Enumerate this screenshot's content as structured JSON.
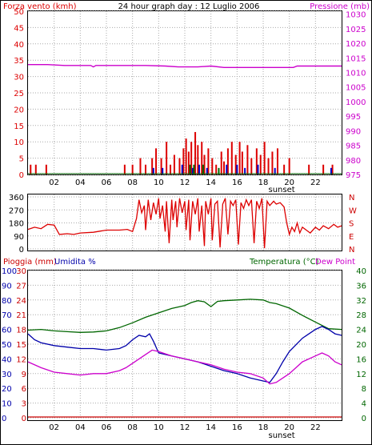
{
  "header": {
    "wind_label": "Forza vento (kmh)",
    "title": "24 hour graph day : 12 Luglio 2006",
    "pressure_label": "Pressione (mb)",
    "rain_label": "Pioggia (mm)",
    "humidity_label": "Umidita %",
    "temp_label": "Temperatura (°C)",
    "dew_label": "Dew Point"
  },
  "colors": {
    "wind": "#dd0000",
    "pressure": "#cc00cc",
    "gust_dir": "#0000cc",
    "temperature": "#006600",
    "humidity": "#0000aa",
    "dew": "#cc00cc",
    "grid": "#aaaaaa",
    "rain": "#cc0000"
  },
  "chart_data": [
    {
      "id": "wind",
      "type": "bar",
      "title": "24 hour graph day : 12 Luglio 2006",
      "x_ticks": [
        "02",
        "04",
        "06",
        "08",
        "10",
        "12",
        "14",
        "16",
        "18",
        "20",
        "22"
      ],
      "sunset_label": "sunset",
      "sunset_hour": 19.5,
      "left_axis": {
        "label": "Forza vento (kmh)",
        "ticks": [
          "0",
          "5",
          "10",
          "15",
          "20",
          "25",
          "30",
          "35",
          "40",
          "45",
          "50"
        ],
        "ylim": [
          0,
          50
        ]
      },
      "right_axis": {
        "label": "Pressione (mb)",
        "ticks": [
          "975",
          "980",
          "985",
          "990",
          "995",
          "1000",
          "1005",
          "1010",
          "1015",
          "1020",
          "1025",
          "1030"
        ],
        "ylim": [
          975,
          1031
        ]
      },
      "pressure_series": [
        [
          0,
          1012.7
        ],
        [
          1.5,
          1012.7
        ],
        [
          2.8,
          1012.4
        ],
        [
          4.8,
          1012.4
        ],
        [
          5.0,
          1011.9
        ],
        [
          5.2,
          1012.4
        ],
        [
          9.0,
          1012.4
        ],
        [
          10.5,
          1012.2
        ],
        [
          11.5,
          1011.9
        ],
        [
          13.0,
          1011.9
        ],
        [
          14.0,
          1012.2
        ],
        [
          15.0,
          1011.7
        ],
        [
          20.3,
          1011.7
        ],
        [
          20.6,
          1012.2
        ],
        [
          24,
          1012.2
        ]
      ],
      "wind_bars": [
        [
          0.2,
          3
        ],
        [
          0.6,
          3
        ],
        [
          1.4,
          3
        ],
        [
          7.4,
          3
        ],
        [
          8.0,
          3
        ],
        [
          8.6,
          5
        ],
        [
          9.0,
          3
        ],
        [
          9.5,
          5
        ],
        [
          9.8,
          8
        ],
        [
          10.2,
          5
        ],
        [
          10.6,
          10
        ],
        [
          10.9,
          3
        ],
        [
          11.2,
          6
        ],
        [
          11.6,
          5
        ],
        [
          11.9,
          8
        ],
        [
          12.1,
          11
        ],
        [
          12.3,
          7
        ],
        [
          12.5,
          10
        ],
        [
          12.8,
          13
        ],
        [
          13.0,
          9
        ],
        [
          13.3,
          10
        ],
        [
          13.5,
          6
        ],
        [
          13.8,
          8
        ],
        [
          14.1,
          5
        ],
        [
          14.4,
          3
        ],
        [
          14.8,
          7
        ],
        [
          15.0,
          4
        ],
        [
          15.3,
          8
        ],
        [
          15.6,
          10
        ],
        [
          15.9,
          6
        ],
        [
          16.2,
          10
        ],
        [
          16.4,
          7
        ],
        [
          16.8,
          9
        ],
        [
          17.1,
          5
        ],
        [
          17.5,
          8
        ],
        [
          17.8,
          6
        ],
        [
          18.1,
          10
        ],
        [
          18.4,
          5
        ],
        [
          18.7,
          7
        ],
        [
          19.1,
          8
        ],
        [
          19.6,
          3
        ],
        [
          20.0,
          5
        ],
        [
          21.5,
          3
        ],
        [
          22.6,
          3
        ],
        [
          23.3,
          3
        ]
      ],
      "gust_bars": [
        [
          9.6,
          2
        ],
        [
          10.3,
          2
        ],
        [
          11.8,
          3
        ],
        [
          12.6,
          2
        ],
        [
          13.1,
          3
        ],
        [
          13.7,
          2
        ],
        [
          15.2,
          3
        ],
        [
          16.0,
          3
        ],
        [
          16.6,
          2
        ],
        [
          17.6,
          3
        ],
        [
          18.9,
          2
        ],
        [
          23.2,
          2
        ]
      ],
      "calm_bars": [
        [
          12.4,
          3
        ],
        [
          12.7,
          3
        ],
        [
          13.4,
          3
        ],
        [
          14.6,
          2
        ]
      ]
    },
    {
      "id": "direction",
      "type": "line",
      "y_ticks": [
        "0",
        "90",
        "180",
        "270",
        "360"
      ],
      "ylim": [
        0,
        360
      ],
      "compass": [
        "N",
        "W",
        "S",
        "E",
        "N"
      ],
      "series": [
        [
          0,
          135
        ],
        [
          0.5,
          150
        ],
        [
          1,
          140
        ],
        [
          1.5,
          170
        ],
        [
          2,
          165
        ],
        [
          2.4,
          100
        ],
        [
          3,
          105
        ],
        [
          3.5,
          100
        ],
        [
          4,
          110
        ],
        [
          5,
          115
        ],
        [
          6,
          130
        ],
        [
          7,
          130
        ],
        [
          7.6,
          135
        ],
        [
          8.0,
          120
        ],
        [
          8.3,
          210
        ],
        [
          8.5,
          340
        ],
        [
          8.7,
          250
        ],
        [
          8.9,
          300
        ],
        [
          9.0,
          130
        ],
        [
          9.2,
          340
        ],
        [
          9.4,
          200
        ],
        [
          9.6,
          320
        ],
        [
          9.8,
          240
        ],
        [
          10.0,
          350
        ],
        [
          10.1,
          210
        ],
        [
          10.3,
          300
        ],
        [
          10.5,
          120
        ],
        [
          10.6,
          330
        ],
        [
          10.8,
          40
        ],
        [
          11.0,
          340
        ],
        [
          11.1,
          200
        ],
        [
          11.3,
          330
        ],
        [
          11.4,
          150
        ],
        [
          11.6,
          350
        ],
        [
          11.8,
          250
        ],
        [
          12.0,
          330
        ],
        [
          12.1,
          130
        ],
        [
          12.3,
          340
        ],
        [
          12.4,
          60
        ],
        [
          12.6,
          330
        ],
        [
          12.8,
          240
        ],
        [
          13.0,
          350
        ],
        [
          13.1,
          120
        ],
        [
          13.3,
          300
        ],
        [
          13.5,
          20
        ],
        [
          13.6,
          330
        ],
        [
          13.8,
          240
        ],
        [
          14.0,
          350
        ],
        [
          14.1,
          60
        ],
        [
          14.3,
          310
        ],
        [
          14.5,
          330
        ],
        [
          14.7,
          10
        ],
        [
          14.9,
          310
        ],
        [
          15.1,
          350
        ],
        [
          15.3,
          100
        ],
        [
          15.5,
          330
        ],
        [
          15.7,
          300
        ],
        [
          15.9,
          340
        ],
        [
          16.1,
          30
        ],
        [
          16.3,
          320
        ],
        [
          16.5,
          280
        ],
        [
          16.7,
          340
        ],
        [
          16.9,
          300
        ],
        [
          17.1,
          340
        ],
        [
          17.3,
          40
        ],
        [
          17.5,
          330
        ],
        [
          17.7,
          280
        ],
        [
          17.9,
          350
        ],
        [
          18.1,
          5
        ],
        [
          18.3,
          330
        ],
        [
          18.5,
          300
        ],
        [
          18.8,
          330
        ],
        [
          19.0,
          310
        ],
        [
          19.3,
          320
        ],
        [
          19.6,
          290
        ],
        [
          19.8,
          180
        ],
        [
          20.0,
          100
        ],
        [
          20.2,
          150
        ],
        [
          20.4,
          120
        ],
        [
          20.6,
          180
        ],
        [
          20.8,
          110
        ],
        [
          21.0,
          150
        ],
        [
          21.3,
          130
        ],
        [
          21.6,
          110
        ],
        [
          22.0,
          150
        ],
        [
          22.3,
          130
        ],
        [
          22.6,
          160
        ],
        [
          23.0,
          140
        ],
        [
          23.4,
          170
        ],
        [
          23.7,
          150
        ],
        [
          24,
          160
        ]
      ]
    },
    {
      "id": "temperature",
      "type": "line",
      "left_rain_ticks": [
        "0",
        "3",
        "6",
        "9",
        "12",
        "15",
        "18",
        "21",
        "24",
        "27",
        "30"
      ],
      "left_hum_ticks": [
        "0",
        "10",
        "20",
        "30",
        "40",
        "50",
        "60",
        "70",
        "80",
        "90",
        "100"
      ],
      "right_ticks": [
        "0",
        "4",
        "8",
        "12",
        "16",
        "20",
        "24",
        "28",
        "32",
        "36",
        "40"
      ],
      "rain_ylim": [
        0,
        30
      ],
      "humidity_ylim": [
        0,
        100
      ],
      "temp_ylim": [
        0,
        40
      ],
      "x_ticks": [
        "02",
        "04",
        "06",
        "08",
        "10",
        "12",
        "14",
        "16",
        "18",
        "20",
        "22"
      ],
      "sunset_label": "sunset",
      "temperature": [
        [
          0,
          23.8
        ],
        [
          1,
          24
        ],
        [
          2,
          23.6
        ],
        [
          3,
          23.4
        ],
        [
          4,
          23.2
        ],
        [
          5,
          23.3
        ],
        [
          6,
          23.6
        ],
        [
          7,
          24.5
        ],
        [
          8,
          25.8
        ],
        [
          9,
          27.3
        ],
        [
          10,
          28.5
        ],
        [
          11,
          29.7
        ],
        [
          12,
          30.5
        ],
        [
          12.5,
          31.3
        ],
        [
          13,
          31.8
        ],
        [
          13.5,
          31.5
        ],
        [
          14,
          30.2
        ],
        [
          14.5,
          31.6
        ],
        [
          15,
          31.8
        ],
        [
          16,
          32
        ],
        [
          17,
          32.2
        ],
        [
          18,
          32
        ],
        [
          18.5,
          31.3
        ],
        [
          19,
          31
        ],
        [
          20,
          29.8
        ],
        [
          21,
          27.8
        ],
        [
          22,
          26
        ],
        [
          23,
          24.2
        ],
        [
          24,
          24
        ]
      ],
      "humidity": [
        [
          0,
          57
        ],
        [
          0.5,
          53
        ],
        [
          1,
          51
        ],
        [
          2,
          49
        ],
        [
          3,
          48
        ],
        [
          4,
          47
        ],
        [
          5,
          47
        ],
        [
          6,
          46
        ],
        [
          7,
          47
        ],
        [
          7.5,
          49
        ],
        [
          8,
          53
        ],
        [
          8.5,
          56
        ],
        [
          9,
          55
        ],
        [
          9.3,
          57
        ],
        [
          9.6,
          52
        ],
        [
          10,
          44
        ],
        [
          11,
          42
        ],
        [
          12,
          40
        ],
        [
          13,
          38
        ],
        [
          14,
          35
        ],
        [
          15,
          32
        ],
        [
          16,
          30
        ],
        [
          17,
          27
        ],
        [
          18,
          25
        ],
        [
          18.5,
          24
        ],
        [
          19,
          30
        ],
        [
          19.5,
          38
        ],
        [
          20,
          45
        ],
        [
          21,
          54
        ],
        [
          22,
          60
        ],
        [
          22.5,
          62
        ],
        [
          23,
          60
        ],
        [
          23.5,
          57
        ],
        [
          24,
          56
        ]
      ],
      "dew": [
        [
          0,
          38
        ],
        [
          1,
          34
        ],
        [
          2,
          31
        ],
        [
          3,
          30
        ],
        [
          4,
          29
        ],
        [
          5,
          30
        ],
        [
          6,
          30
        ],
        [
          7,
          32
        ],
        [
          7.5,
          34
        ],
        [
          8,
          37
        ],
        [
          9,
          43
        ],
        [
          9.5,
          46
        ],
        [
          10,
          45
        ],
        [
          11,
          42
        ],
        [
          12,
          40
        ],
        [
          13,
          38
        ],
        [
          14,
          36
        ],
        [
          15,
          33
        ],
        [
          16,
          31
        ],
        [
          17,
          30
        ],
        [
          18,
          27
        ],
        [
          18.5,
          23
        ],
        [
          19,
          24
        ],
        [
          20,
          30
        ],
        [
          21,
          38
        ],
        [
          22,
          42
        ],
        [
          22.5,
          44
        ],
        [
          23,
          42
        ],
        [
          23.5,
          38
        ],
        [
          24,
          36
        ]
      ],
      "rain": [
        [
          0,
          0
        ],
        [
          24,
          0
        ]
      ]
    }
  ]
}
